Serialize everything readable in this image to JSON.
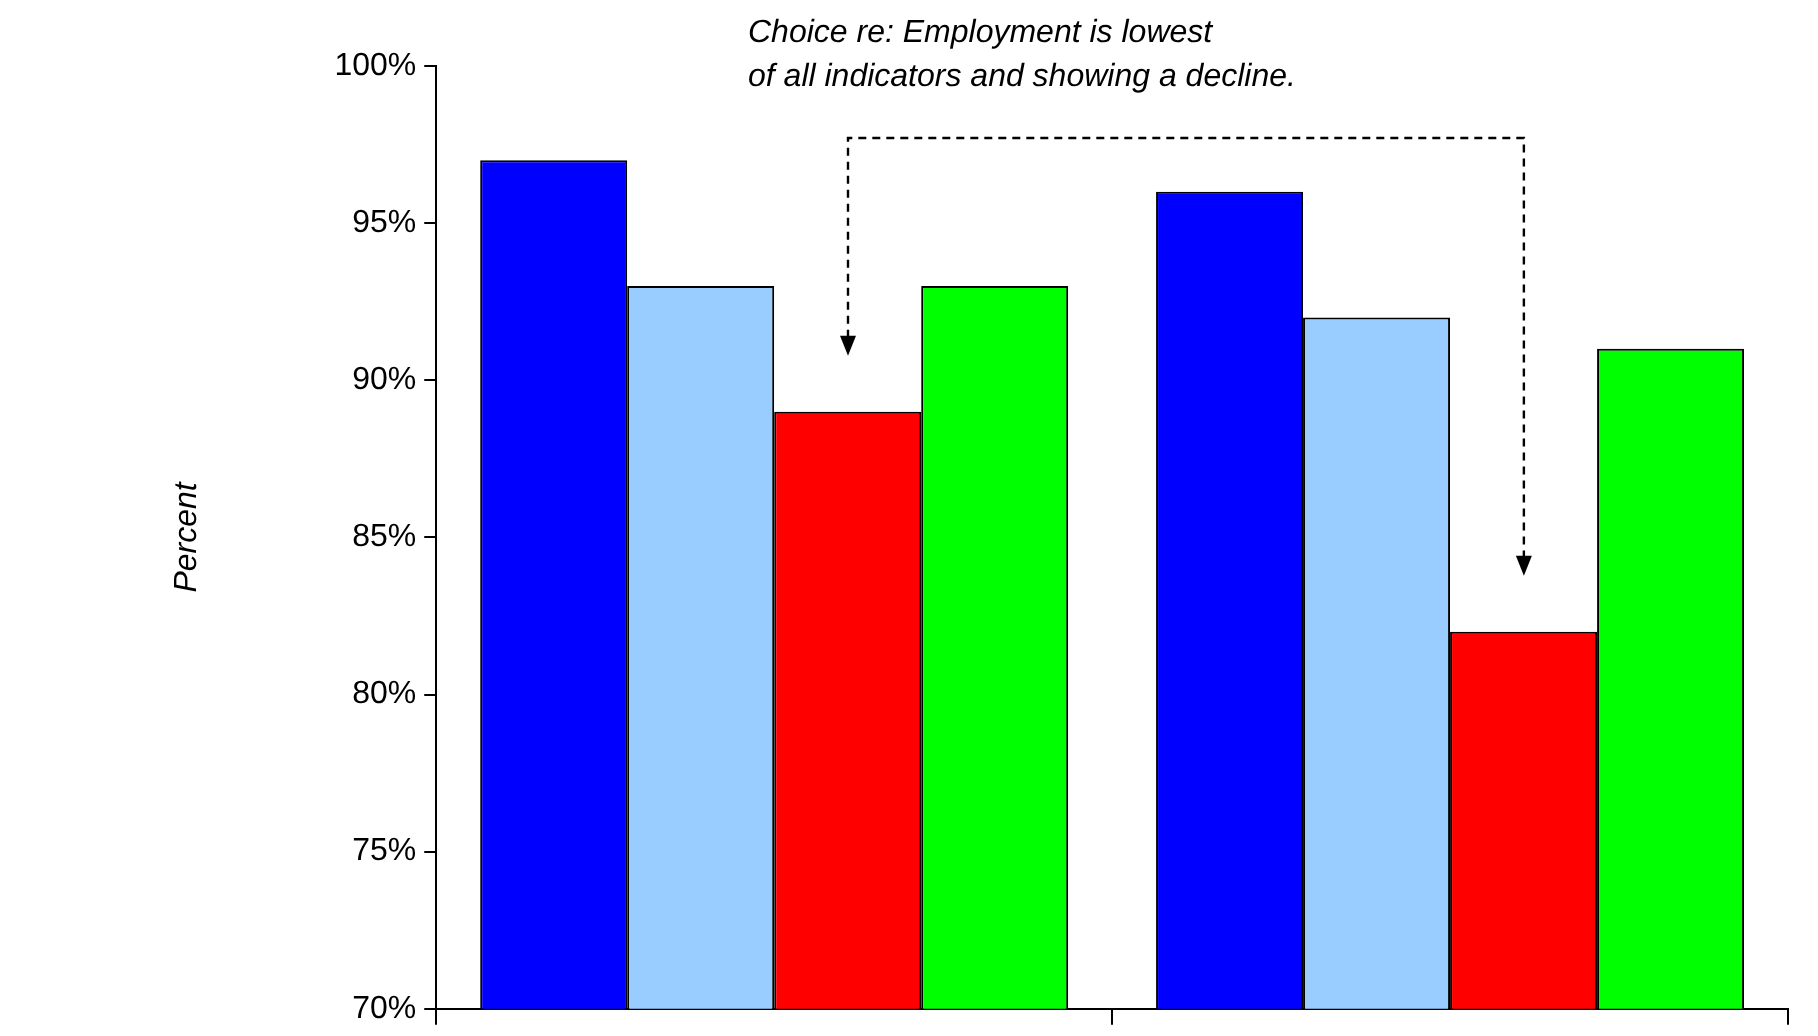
{
  "chart_data": {
    "type": "bar",
    "ylabel": "Percent",
    "categories": [
      null,
      null
    ],
    "series": [
      {
        "color": "#0000ff",
        "values": [
          97,
          96
        ]
      },
      {
        "color": "#99ccff",
        "values": [
          93,
          92
        ]
      },
      {
        "color": "#ff0000",
        "values": [
          89,
          82
        ]
      },
      {
        "color": "#00ff00",
        "values": [
          93,
          91
        ]
      }
    ],
    "ylim": [
      70,
      100
    ],
    "yticks": [
      {
        "value": 70,
        "label": "70%"
      },
      {
        "value": 75,
        "label": "75%"
      },
      {
        "value": 80,
        "label": "80%"
      },
      {
        "value": 85,
        "label": "85%"
      },
      {
        "value": 90,
        "label": "90%"
      },
      {
        "value": 95,
        "label": "95%"
      },
      {
        "value": 100,
        "label": "100%"
      }
    ],
    "grid": false,
    "legend": false,
    "annotations": [
      "Choice re: Employment is lowest\nof all indicators and showing a decline."
    ]
  }
}
